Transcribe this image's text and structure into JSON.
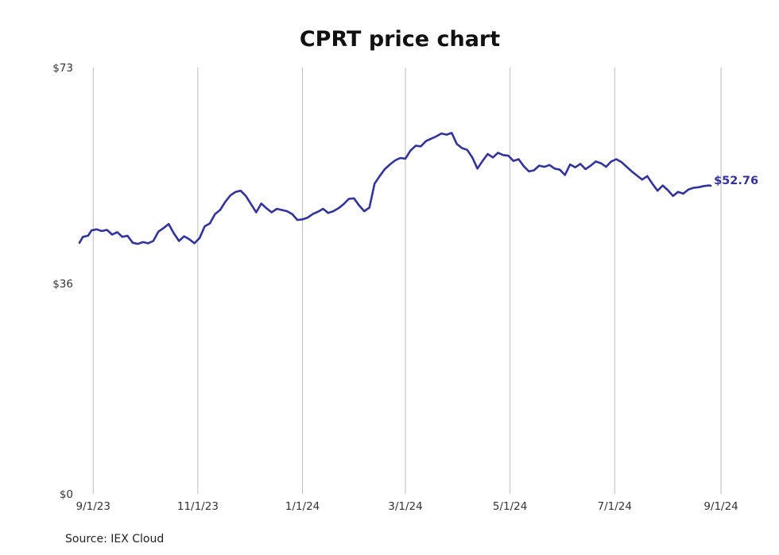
{
  "chart_data": {
    "type": "line",
    "title": "CPRT price chart",
    "source": "Source: IEX Cloud",
    "xlabel": "",
    "ylabel": "",
    "line_color": "#333399",
    "grid": "vertical",
    "yticks": [
      {
        "value": 0,
        "label": "$0"
      },
      {
        "value": 36,
        "label": "$36"
      },
      {
        "value": 73,
        "label": "$73"
      }
    ],
    "xticks": [
      {
        "date": "2023-09-01",
        "label": "9/1/23"
      },
      {
        "date": "2023-11-01",
        "label": "11/1/23"
      },
      {
        "date": "2024-01-01",
        "label": "1/1/24"
      },
      {
        "date": "2024-03-01",
        "label": "3/1/24"
      },
      {
        "date": "2024-05-01",
        "label": "5/1/24"
      },
      {
        "date": "2024-07-01",
        "label": "7/1/24"
      },
      {
        "date": "2024-09-01",
        "label": "9/1/24"
      }
    ],
    "ylim": [
      0,
      73
    ],
    "xlim": [
      "2023-08-24",
      "2024-09-07"
    ],
    "last_label": "$52.76",
    "series": [
      {
        "x": [
          "2023-08-24",
          "2023-08-26",
          "2023-08-29",
          "2023-08-31",
          "2023-09-03",
          "2023-09-06",
          "2023-09-09",
          "2023-09-12",
          "2023-09-15",
          "2023-09-18",
          "2023-09-21",
          "2023-09-24",
          "2023-09-27",
          "2023-09-30",
          "2023-10-03",
          "2023-10-06",
          "2023-10-09",
          "2023-10-12",
          "2023-10-15",
          "2023-10-18",
          "2023-10-21",
          "2023-10-24",
          "2023-10-27",
          "2023-10-30",
          "2023-11-02",
          "2023-11-05",
          "2023-11-08",
          "2023-11-11",
          "2023-11-14",
          "2023-11-17",
          "2023-11-20",
          "2023-11-23",
          "2023-11-26",
          "2023-11-29",
          "2023-12-02",
          "2023-12-05",
          "2023-12-08",
          "2023-12-11",
          "2023-12-14",
          "2023-12-17",
          "2023-12-20",
          "2023-12-23",
          "2023-12-26",
          "2023-12-29",
          "2024-01-01",
          "2024-01-04",
          "2024-01-07",
          "2024-01-10",
          "2024-01-13",
          "2024-01-16",
          "2024-01-19",
          "2024-01-22",
          "2024-01-25",
          "2024-01-28",
          "2024-01-31",
          "2024-02-03",
          "2024-02-06",
          "2024-02-09",
          "2024-02-12",
          "2024-02-15",
          "2024-02-18",
          "2024-02-21",
          "2024-02-24",
          "2024-02-27",
          "2024-03-01",
          "2024-03-04",
          "2024-03-07",
          "2024-03-10",
          "2024-03-13",
          "2024-03-16",
          "2024-03-19",
          "2024-03-22",
          "2024-03-25",
          "2024-03-28",
          "2024-03-31",
          "2024-04-03",
          "2024-04-06",
          "2024-04-09",
          "2024-04-12",
          "2024-04-15",
          "2024-04-18",
          "2024-04-21",
          "2024-04-24",
          "2024-04-27",
          "2024-04-30",
          "2024-05-03",
          "2024-05-06",
          "2024-05-09",
          "2024-05-12",
          "2024-05-15",
          "2024-05-18",
          "2024-05-21",
          "2024-05-24",
          "2024-05-27",
          "2024-05-30",
          "2024-06-02",
          "2024-06-05",
          "2024-06-08",
          "2024-06-11",
          "2024-06-14",
          "2024-06-17",
          "2024-06-20",
          "2024-06-23",
          "2024-06-26",
          "2024-06-29",
          "2024-07-02",
          "2024-07-05",
          "2024-07-08",
          "2024-07-11",
          "2024-07-14",
          "2024-07-17",
          "2024-07-20",
          "2024-07-23",
          "2024-07-26",
          "2024-07-29",
          "2024-08-01",
          "2024-08-04",
          "2024-08-07",
          "2024-08-10",
          "2024-08-13",
          "2024-08-16",
          "2024-08-19",
          "2024-08-22",
          "2024-08-25",
          "2024-08-26"
        ],
        "values": [
          43.0,
          44.0,
          44.2,
          45.1,
          45.3,
          45.0,
          45.2,
          44.4,
          44.8,
          44.0,
          44.2,
          43.0,
          42.8,
          43.1,
          42.9,
          43.3,
          44.9,
          45.5,
          46.2,
          44.6,
          43.3,
          44.1,
          43.6,
          42.9,
          43.8,
          45.8,
          46.3,
          47.9,
          48.6,
          50.0,
          51.1,
          51.7,
          51.9,
          51.0,
          49.6,
          48.2,
          49.7,
          48.9,
          48.2,
          48.8,
          48.6,
          48.4,
          47.9,
          46.9,
          47.0,
          47.3,
          47.9,
          48.3,
          48.8,
          48.1,
          48.4,
          48.9,
          49.6,
          50.5,
          50.6,
          49.4,
          48.4,
          49.0,
          53.1,
          54.4,
          55.6,
          56.4,
          57.1,
          57.5,
          57.4,
          58.8,
          59.6,
          59.5,
          60.4,
          60.8,
          61.2,
          61.7,
          61.5,
          61.8,
          59.9,
          59.2,
          58.9,
          57.6,
          55.7,
          57.0,
          58.2,
          57.6,
          58.4,
          58.0,
          57.9,
          57.0,
          57.3,
          56.1,
          55.2,
          55.4,
          56.2,
          56.0,
          56.3,
          55.7,
          55.5,
          54.6,
          56.4,
          55.9,
          56.5,
          55.6,
          56.2,
          56.9,
          56.6,
          56.0,
          56.9,
          57.3,
          56.8,
          56.0,
          55.2,
          54.5,
          53.8,
          54.4,
          53.1,
          51.9,
          52.8,
          52.0,
          51.0,
          51.7,
          51.4,
          52.1,
          52.4,
          52.5,
          52.7,
          52.8,
          52.76
        ]
      }
    ]
  }
}
